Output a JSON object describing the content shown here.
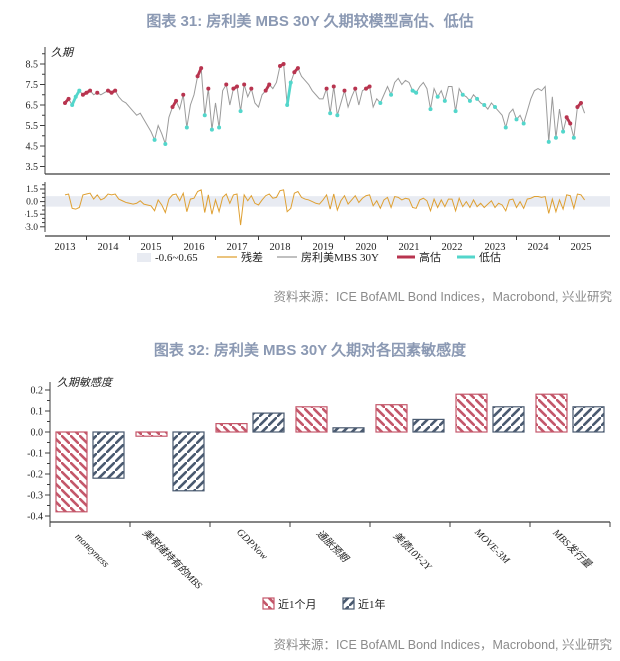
{
  "colors": {
    "title": "#8b99b3",
    "source": "#8b8b8b",
    "axis": "#3c3c3c",
    "line_gray": "#9b9b9b",
    "residual_orange": "#dfa032",
    "red_marker": "#b8344f",
    "cyan_marker": "#53d6cb",
    "band": "#e8ebf2",
    "bar_red": "#c4576a",
    "bar_navy": "#4a5a70"
  },
  "chart31": {
    "title": "图表 31: 房利美 MBS 30Y 久期较模型高估、低估",
    "source": "资料来源：ICE BofAML Bond Indices，Macrobond, 兴业研究"
  },
  "chart32": {
    "title": "图表 32: 房利美 MBS 30Y 久期对各因素敏感度",
    "source": "资料来源：ICE BofAML Bond Indices，Macrobond, 兴业研究"
  },
  "chart_data": [
    {
      "type": "line",
      "title": "图表 31: 房利美 MBS 30Y 久期较模型高估、低估",
      "ylabel": "久期",
      "panel_main": {
        "ylim": [
          3.5,
          9.0
        ],
        "yticks": [
          8.5,
          7.5,
          6.5,
          5.5,
          4.5,
          3.5
        ]
      },
      "panel_residual": {
        "ylim": [
          -3.0,
          1.5
        ],
        "yticks": [
          1.5,
          0.0,
          -1.5,
          -3.0
        ],
        "band": [
          -0.6,
          0.65
        ],
        "band_label": "-0.6~0.65"
      },
      "x_start": 2013.0,
      "x_step": 0.08333,
      "xticks": [
        2013,
        2014,
        2015,
        2016,
        2017,
        2018,
        2019,
        2020,
        2021,
        2022,
        2023,
        2024,
        2025
      ],
      "series": [
        {
          "name": "房利美MBS 30Y",
          "color_key": "line_gray",
          "values": [
            6.6,
            6.8,
            6.5,
            6.9,
            7.2,
            7.0,
            7.1,
            7.2,
            7.0,
            7.1,
            7.0,
            7.1,
            7.2,
            7.1,
            7.2,
            6.9,
            6.7,
            6.6,
            6.4,
            6.2,
            6.0,
            6.1,
            5.8,
            5.5,
            5.2,
            4.8,
            5.5,
            5.1,
            4.6,
            5.9,
            6.4,
            6.7,
            6.3,
            7.0,
            5.4,
            6.5,
            7.0,
            7.9,
            8.3,
            6.0,
            7.3,
            5.3,
            6.6,
            5.4,
            7.2,
            7.5,
            6.5,
            7.3,
            7.4,
            6.2,
            7.5,
            6.9,
            7.3,
            6.6,
            6.4,
            7.0,
            7.2,
            7.5,
            7.3,
            7.6,
            8.4,
            8.5,
            6.5,
            7.6,
            8.1,
            8.3,
            7.9,
            7.7,
            7.5,
            7.2,
            7.0,
            6.8,
            6.8,
            7.3,
            6.1,
            7.4,
            6.0,
            6.6,
            7.2,
            6.4,
            6.9,
            7.3,
            6.5,
            7.2,
            7.3,
            7.4,
            6.4,
            6.8,
            6.6,
            7.0,
            7.4,
            7.0,
            7.6,
            7.8,
            7.5,
            7.7,
            7.6,
            7.2,
            7.1,
            7.4,
            7.6,
            7.3,
            6.3,
            7.3,
            6.9,
            7.2,
            6.7,
            7.4,
            7.4,
            6.2,
            7.3,
            7.0,
            6.9,
            6.7,
            7.0,
            6.8,
            6.6,
            6.5,
            6.3,
            6.6,
            6.4,
            6.2,
            6.0,
            5.4,
            6.1,
            6.3,
            5.8,
            6.0,
            5.6,
            6.2,
            6.8,
            7.2,
            7.3,
            7.2,
            7.4,
            4.7,
            6.9,
            4.9,
            6.3,
            5.2,
            5.9,
            5.6,
            4.9,
            6.4,
            6.6,
            6.1
          ]
        },
        {
          "name": "残差",
          "color_key": "residual_orange",
          "values": [
            0.8,
            0.9,
            -0.8,
            -0.9,
            -0.7,
            0.8,
            0.9,
            1.0,
            0.3,
            0.8,
            0.2,
            0.4,
            0.9,
            0.8,
            0.9,
            0.3,
            0.1,
            -0.1,
            -0.2,
            -0.3,
            -0.2,
            0.1,
            -0.3,
            -0.4,
            -0.5,
            -1.1,
            0.2,
            -0.4,
            -1.3,
            0.3,
            0.8,
            0.9,
            0.1,
            1.0,
            -1.2,
            0.3,
            0.4,
            1.2,
            1.4,
            -1.3,
            0.8,
            -1.5,
            0.2,
            -1.2,
            0.5,
            0.9,
            -0.2,
            0.8,
            0.9,
            -2.8,
            0.8,
            0.1,
            0.7,
            -0.2,
            -0.4,
            0.2,
            0.7,
            0.9,
            0.4,
            0.5,
            1.3,
            1.4,
            -1.2,
            -0.8,
            1.0,
            1.2,
            0.5,
            0.3,
            0.2,
            0.0,
            -0.2,
            -0.3,
            0.2,
            0.8,
            -0.9,
            0.9,
            -1.0,
            0.1,
            0.7,
            -0.3,
            0.2,
            0.7,
            -0.1,
            0.4,
            0.7,
            0.8,
            -0.5,
            0.1,
            -0.8,
            0.2,
            0.5,
            -0.7,
            0.6,
            0.5,
            0.2,
            0.4,
            0.3,
            -0.7,
            -0.8,
            0.2,
            0.4,
            0.1,
            -1.1,
            0.3,
            -0.7,
            0.2,
            -0.6,
            0.3,
            0.3,
            -1.1,
            0.4,
            -0.6,
            0.0,
            -0.7,
            0.2,
            -0.6,
            -0.2,
            -0.7,
            -0.3,
            0.1,
            -0.7,
            -0.2,
            -0.4,
            -1.1,
            0.2,
            0.3,
            -0.7,
            0.0,
            -0.8,
            0.3,
            0.4,
            0.6,
            0.6,
            0.5,
            0.6,
            -1.4,
            0.3,
            -1.2,
            0.2,
            -0.9,
            0.8,
            0.7,
            -0.8,
            0.9,
            0.8,
            0.2
          ]
        }
      ],
      "markers": {
        "over_label": "高估",
        "under_label": "低估",
        "flags": [
          "r",
          "r",
          "c",
          "c",
          "c",
          "r",
          "r",
          "r",
          "",
          "r",
          "",
          "",
          "r",
          "r",
          "r",
          "",
          "",
          "",
          "",
          "",
          "",
          "",
          "",
          "",
          "",
          "c",
          "",
          "",
          "c",
          "",
          "r",
          "r",
          "",
          "r",
          "c",
          "",
          "",
          "r",
          "r",
          "c",
          "r",
          "c",
          "",
          "c",
          "",
          "r",
          "",
          "r",
          "r",
          "c",
          "r",
          "",
          "r",
          "",
          "",
          "",
          "r",
          "r",
          "",
          "",
          "r",
          "r",
          "c",
          "c",
          "r",
          "r",
          "",
          "",
          "",
          "",
          "",
          "",
          "",
          "r",
          "c",
          "r",
          "c",
          "",
          "r",
          "",
          "",
          "r",
          "",
          "",
          "r",
          "r",
          "",
          "",
          "c",
          "",
          "",
          "c",
          "",
          "",
          "",
          "",
          "",
          "c",
          "c",
          "",
          "",
          "",
          "c",
          "",
          "c",
          "",
          "c",
          "",
          "",
          "c",
          "",
          "c",
          "",
          "c",
          "",
          "c",
          "",
          "c",
          "",
          "",
          "c",
          "",
          "",
          "c",
          "",
          "",
          "c",
          "",
          "c",
          "",
          "",
          "",
          "",
          "",
          "",
          "c",
          "",
          "c",
          "",
          "c",
          "r",
          "r",
          "c",
          "r",
          "r",
          ""
        ]
      }
    },
    {
      "type": "bar",
      "title": "图表 32: 房利美 MBS 30Y 久期对各因素敏感度",
      "ylabel": "久期敏感度",
      "ylim": [
        -0.4,
        0.2
      ],
      "yticks": [
        0.2,
        0.1,
        0.0,
        -0.1,
        -0.2,
        -0.3,
        -0.4
      ],
      "categories": [
        "moneyness",
        "美联储持有的MBS",
        "GDPNow",
        "通胀预期",
        "美债10Y-2Y",
        "MOVE-3M",
        "MBS发行量"
      ],
      "series": [
        {
          "name": "近1个月",
          "color_key": "bar_red",
          "hatch": "\\",
          "values": [
            -0.38,
            -0.02,
            0.04,
            0.12,
            0.13,
            0.18,
            0.18
          ]
        },
        {
          "name": "近1年",
          "color_key": "bar_navy",
          "hatch": "/",
          "values": [
            -0.22,
            -0.28,
            0.09,
            0.02,
            0.06,
            0.12,
            0.12
          ]
        }
      ],
      "legend_position": "bottom"
    }
  ]
}
